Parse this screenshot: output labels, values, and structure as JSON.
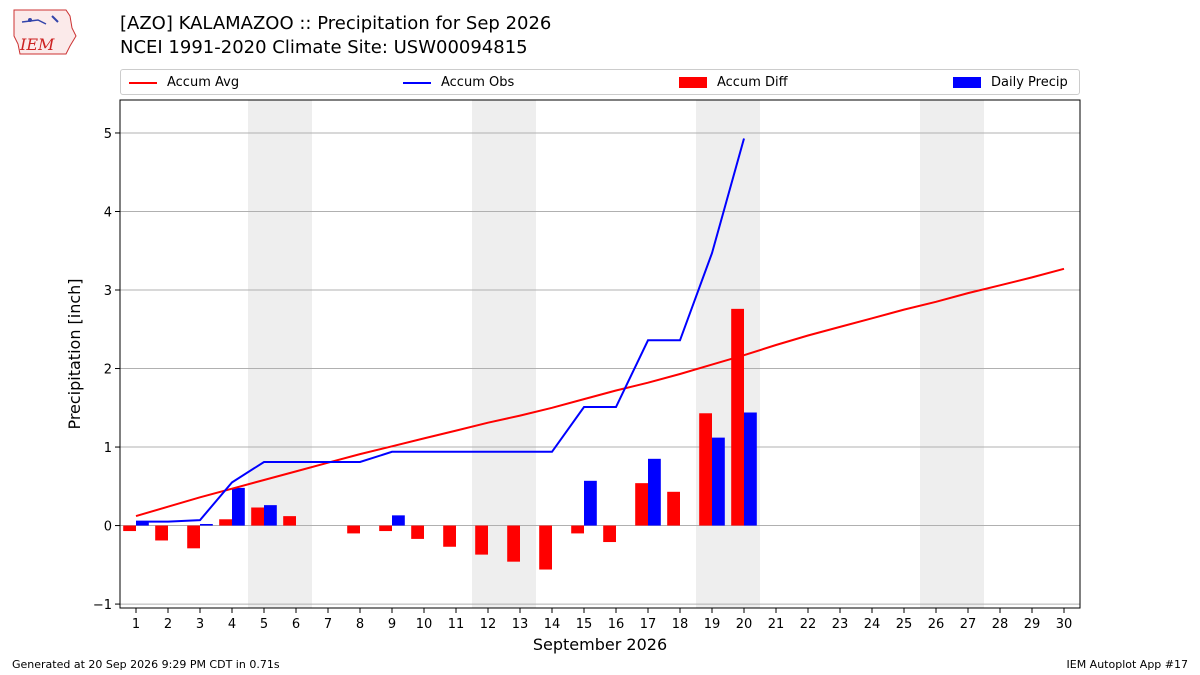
{
  "title_line1": "[AZO] KALAMAZOO :: Precipitation for Sep 2026",
  "title_line2": "NCEI 1991-2020 Climate Site: USW00094815",
  "logo_text": "IEM",
  "footer_left": "Generated at 20 Sep 2026 9:29 PM CDT in 0.71s",
  "footer_right": "IEM Autoplot App #17",
  "colors": {
    "accum_avg": "#ff0000",
    "accum_obs": "#0000ff",
    "accum_diff": "#ff0000",
    "daily_precip": "#0000ff",
    "weekend_shade": "#eeeeee",
    "grid": "#b0b0b0"
  },
  "legend": [
    {
      "label": "Accum Avg",
      "kind": "line",
      "color": "#ff0000"
    },
    {
      "label": "Accum Obs",
      "kind": "line",
      "color": "#0000ff"
    },
    {
      "label": "Accum Diff",
      "kind": "box",
      "color": "#ff0000"
    },
    {
      "label": "Daily Precip",
      "kind": "box",
      "color": "#0000ff"
    }
  ],
  "chart_data": {
    "type": "bar",
    "xlabel": "September 2026",
    "ylabel": "Precipitation [inch]",
    "xlim": [
      0.5,
      30.5
    ],
    "ylim": [
      -1.05,
      5.42
    ],
    "yticks": [
      -1,
      0,
      1,
      2,
      3,
      4,
      5
    ],
    "xticks": [
      1,
      2,
      3,
      4,
      5,
      6,
      7,
      8,
      9,
      10,
      11,
      12,
      13,
      14,
      15,
      16,
      17,
      18,
      19,
      20,
      21,
      22,
      23,
      24,
      25,
      26,
      27,
      28,
      29,
      30
    ],
    "grid": "horizontal",
    "shaded_weekends": [
      [
        4.5,
        6.5
      ],
      [
        11.5,
        13.5
      ],
      [
        18.5,
        20.5
      ],
      [
        25.5,
        27.5
      ]
    ],
    "accum_avg": {
      "name": "Accum Avg",
      "x": [
        1,
        2,
        3,
        4,
        5,
        6,
        7,
        8,
        9,
        10,
        11,
        12,
        13,
        14,
        15,
        16,
        17,
        18,
        19,
        20,
        21,
        22,
        23,
        24,
        25,
        26,
        27,
        28,
        29,
        30
      ],
      "values": [
        0.12,
        0.24,
        0.36,
        0.47,
        0.58,
        0.69,
        0.8,
        0.91,
        1.01,
        1.11,
        1.21,
        1.31,
        1.4,
        1.5,
        1.61,
        1.72,
        1.82,
        1.93,
        2.05,
        2.17,
        2.3,
        2.42,
        2.53,
        2.64,
        2.75,
        2.85,
        2.96,
        3.06,
        3.16,
        3.27
      ]
    },
    "accum_obs": {
      "name": "Accum Obs",
      "x": [
        1,
        2,
        3,
        4,
        5,
        6,
        7,
        8,
        9,
        10,
        11,
        12,
        13,
        14,
        15,
        16,
        17,
        18,
        19,
        20
      ],
      "values": [
        0.05,
        0.05,
        0.07,
        0.55,
        0.81,
        0.81,
        0.81,
        0.81,
        0.94,
        0.94,
        0.94,
        0.94,
        0.94,
        0.94,
        1.51,
        1.51,
        2.36,
        2.36,
        3.47,
        4.93
      ]
    },
    "accum_diff": {
      "name": "Accum Diff",
      "x": [
        1,
        2,
        3,
        4,
        5,
        6,
        7,
        8,
        9,
        10,
        11,
        12,
        13,
        14,
        15,
        16,
        17,
        18,
        19,
        20
      ],
      "values": [
        -0.07,
        -0.19,
        -0.29,
        0.08,
        0.23,
        0.12,
        0.0,
        -0.1,
        -0.07,
        -0.17,
        -0.27,
        -0.37,
        -0.46,
        -0.56,
        -0.1,
        -0.21,
        0.54,
        0.43,
        1.43,
        2.76
      ]
    },
    "daily_precip": {
      "name": "Daily Precip",
      "x": [
        1,
        2,
        3,
        4,
        5,
        6,
        7,
        8,
        9,
        10,
        11,
        12,
        13,
        14,
        15,
        16,
        17,
        18,
        19,
        20
      ],
      "values": [
        0.05,
        0.0,
        0.02,
        0.48,
        0.26,
        0.0,
        0.0,
        0.0,
        0.13,
        0.0,
        0.0,
        0.0,
        0.0,
        0.0,
        0.57,
        0.0,
        0.85,
        0.0,
        1.12,
        1.44
      ]
    }
  }
}
